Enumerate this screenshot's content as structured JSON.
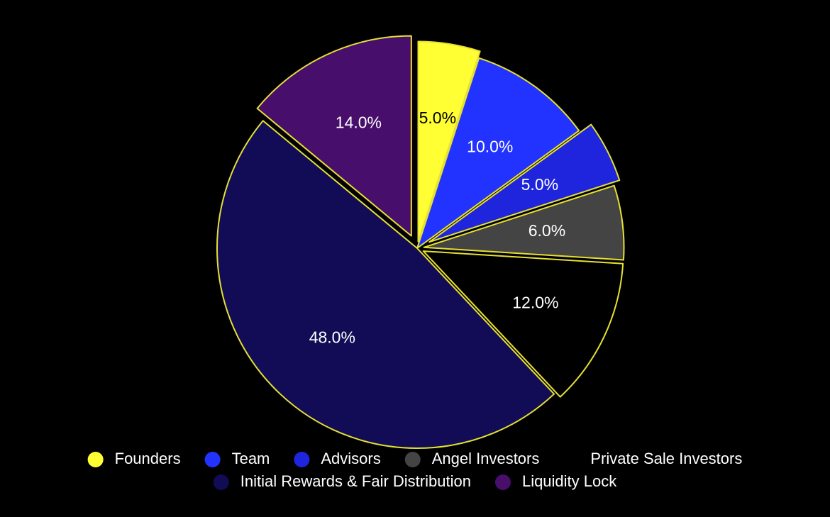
{
  "chart_data": {
    "type": "pie",
    "categories": [
      "Founders",
      "Team",
      "Advisors",
      "Angel Investors",
      "Private Sale Investors",
      "Initial Rewards & Fair Distribution",
      "Liquidity Lock"
    ],
    "values": [
      5.0,
      10.0,
      5.0,
      6.0,
      12.0,
      48.0,
      14.0
    ],
    "labels": [
      "5.0%",
      "10.0%",
      "5.0%",
      "6.0%",
      "12.0%",
      "48.0%",
      "14.0%"
    ],
    "colors": [
      "#ffff33",
      "#2233ff",
      "#1f25dd",
      "#444444",
      "#000000",
      "#110c55",
      "#470e6b"
    ],
    "label_colors": [
      "#000000",
      "#ffffff",
      "#ffffff",
      "#ffffff",
      "#ffffff",
      "#ffffff",
      "#ffffff"
    ],
    "edge_color": "#e6e033",
    "start": "12 o'clock",
    "direction": "clockwise",
    "exploded": true,
    "legend_position": "bottom",
    "title": ""
  }
}
